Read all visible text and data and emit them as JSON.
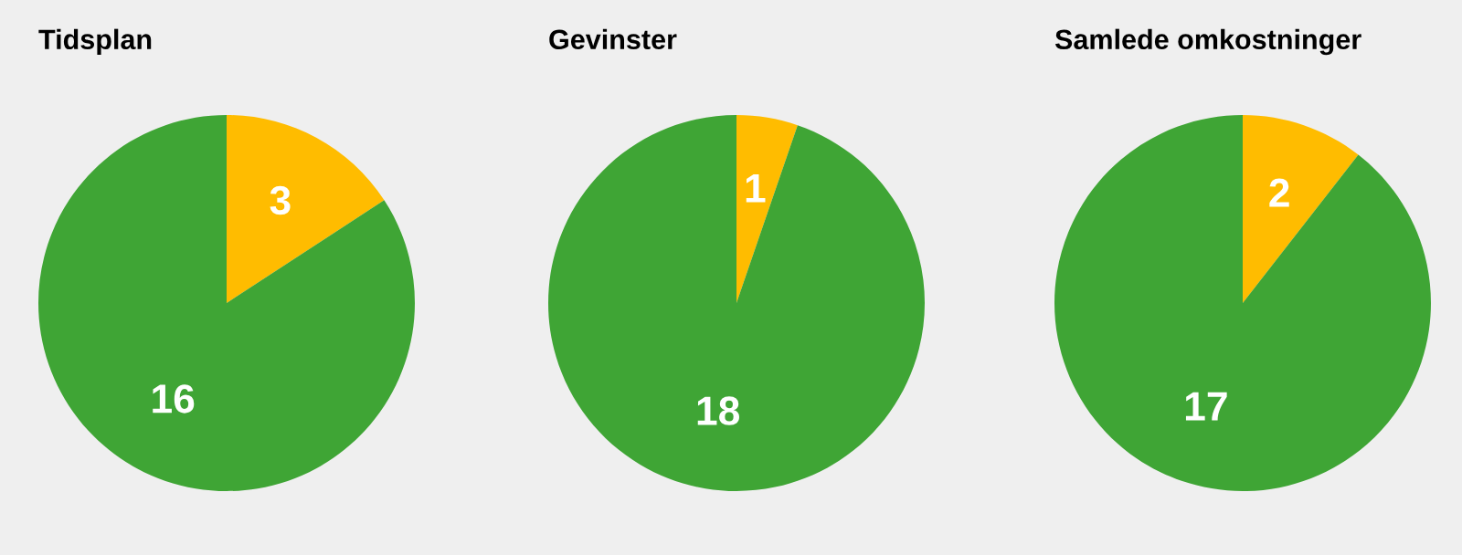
{
  "chart_data": [
    {
      "type": "pie",
      "title": "Tidsplan",
      "categories": [
        null,
        null
      ],
      "values": [
        3,
        16
      ],
      "colors": [
        "#ffbc00",
        "#3fa535"
      ],
      "data_labels": true
    },
    {
      "type": "pie",
      "title": "Gevinster",
      "categories": [
        null,
        null
      ],
      "values": [
        1,
        18
      ],
      "colors": [
        "#ffbc00",
        "#3fa535"
      ],
      "data_labels": true
    },
    {
      "type": "pie",
      "title": "Samlede omkostninger",
      "categories": [
        null,
        null
      ],
      "values": [
        2,
        17
      ],
      "colors": [
        "#ffbc00",
        "#3fa535"
      ],
      "data_labels": true
    }
  ]
}
